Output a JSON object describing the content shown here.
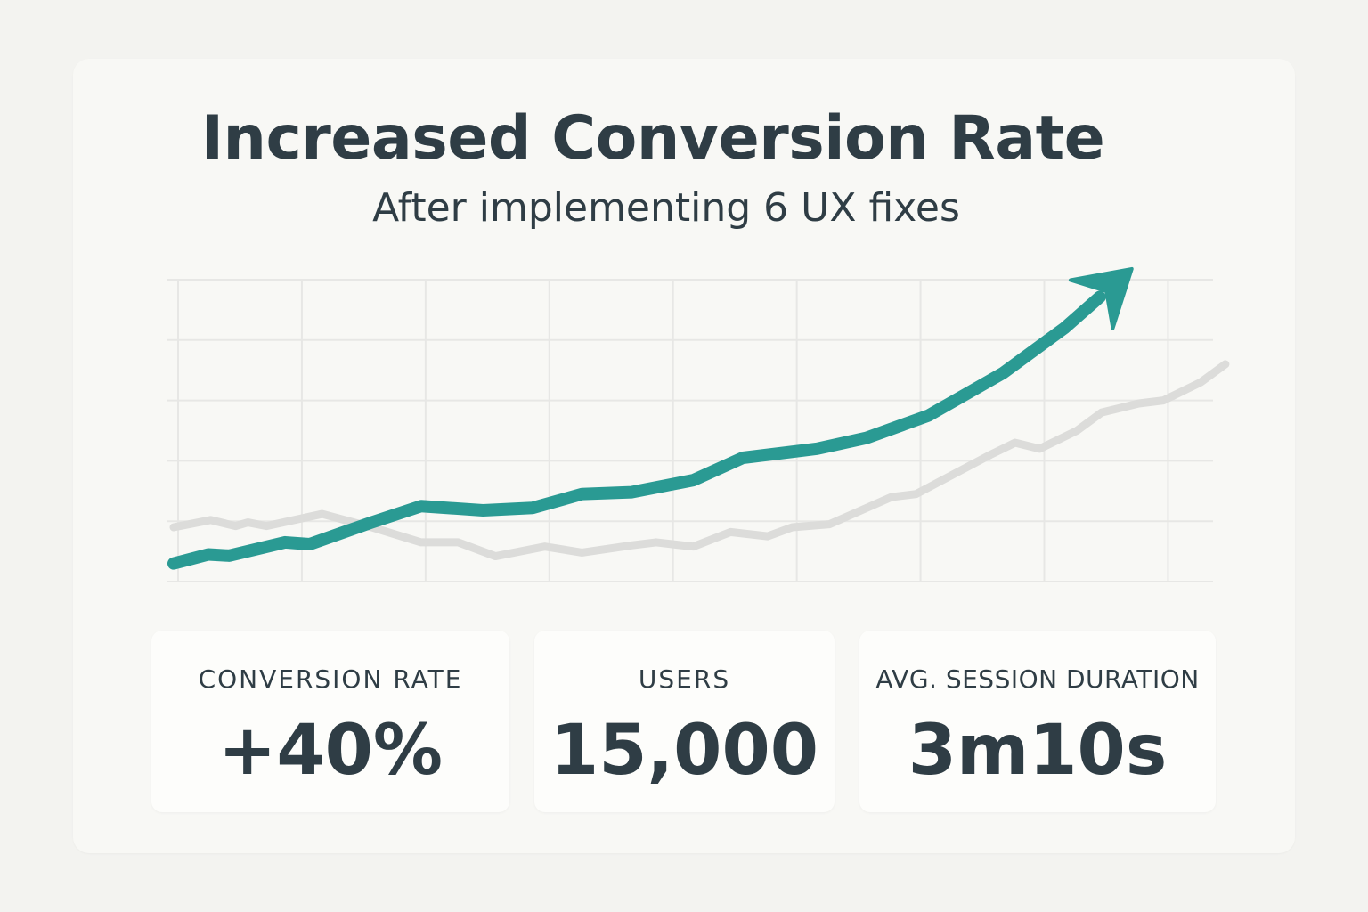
{
  "header": {
    "title": "Increased Conversion Rate",
    "subtitle": "After implementing 6 UX fixes"
  },
  "colors": {
    "after": "#2a9a93",
    "before": "#dcdcda",
    "grid": "#e7e7e5",
    "text": "#2f3d45"
  },
  "chart_data": {
    "type": "line",
    "title": "Increased Conversion Rate",
    "subtitle": "After implementing 6 UX fixes",
    "xlabel": "",
    "ylabel": "",
    "grid": true,
    "legend": "none",
    "xlim": [
      0,
      8.4
    ],
    "ylim": [
      0,
      5
    ],
    "series": [
      {
        "role": "after",
        "arrow_end": true,
        "points": [
          [
            0,
            0.3
          ],
          [
            0.28,
            0.45
          ],
          [
            0.45,
            0.43
          ],
          [
            0.9,
            0.65
          ],
          [
            1.1,
            0.62
          ],
          [
            1.6,
            0.98
          ],
          [
            2.0,
            1.25
          ],
          [
            2.5,
            1.18
          ],
          [
            2.9,
            1.22
          ],
          [
            3.3,
            1.45
          ],
          [
            3.7,
            1.48
          ],
          [
            4.2,
            1.68
          ],
          [
            4.6,
            2.05
          ],
          [
            5.2,
            2.2
          ],
          [
            5.6,
            2.38
          ],
          [
            6.1,
            2.75
          ],
          [
            6.7,
            3.45
          ],
          [
            7.2,
            4.2
          ],
          [
            7.7,
            5.1
          ]
        ]
      },
      {
        "role": "before",
        "arrow_end": false,
        "points": [
          [
            0,
            0.9
          ],
          [
            0.3,
            1.02
          ],
          [
            0.5,
            0.92
          ],
          [
            0.6,
            0.98
          ],
          [
            0.75,
            0.92
          ],
          [
            1.2,
            1.12
          ],
          [
            1.6,
            0.9
          ],
          [
            2.0,
            0.65
          ],
          [
            2.3,
            0.65
          ],
          [
            2.6,
            0.42
          ],
          [
            3.0,
            0.58
          ],
          [
            3.3,
            0.48
          ],
          [
            3.7,
            0.6
          ],
          [
            3.9,
            0.65
          ],
          [
            4.2,
            0.58
          ],
          [
            4.5,
            0.82
          ],
          [
            4.8,
            0.75
          ],
          [
            5.0,
            0.9
          ],
          [
            5.3,
            0.95
          ],
          [
            5.8,
            1.4
          ],
          [
            6.0,
            1.45
          ],
          [
            6.6,
            2.1
          ],
          [
            6.8,
            2.3
          ],
          [
            7.0,
            2.2
          ],
          [
            7.3,
            2.5
          ],
          [
            7.5,
            2.8
          ],
          [
            7.8,
            2.95
          ],
          [
            8.0,
            3.0
          ],
          [
            8.3,
            3.3
          ],
          [
            8.5,
            3.6
          ]
        ]
      }
    ]
  },
  "stats": [
    {
      "label": "CONVERSION RATE",
      "value": "+40%"
    },
    {
      "label": "USERS",
      "value": "15,000"
    },
    {
      "label": "AVG. SESSION DURATION",
      "value": "3m10s"
    }
  ]
}
